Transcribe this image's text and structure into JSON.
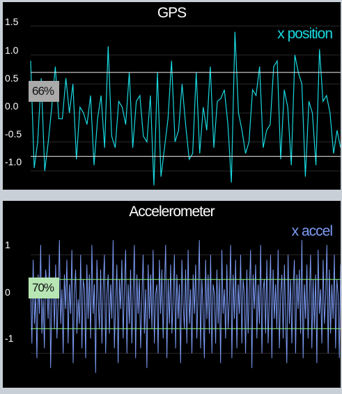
{
  "gps": {
    "title": "GPS",
    "legend": "x position",
    "badge": "66%",
    "ticks": [
      "1.5",
      "1.0",
      "0.5",
      "0.0",
      "-0.5",
      "-1.0"
    ],
    "colors": {
      "line": "#19d9e0",
      "threshold": "#d9d9d9",
      "badge_bg": "#aaaaaa"
    }
  },
  "accel": {
    "title": "Accelerometer",
    "legend": "x accel",
    "badge": "70%",
    "ticks": [
      "1",
      "0",
      "-1"
    ],
    "colors": {
      "line": "#7d9cf6",
      "threshold": "#7fe07a",
      "badge_bg": "#b7e6b4"
    }
  },
  "chart_data": [
    {
      "type": "line",
      "title": "GPS",
      "series": [
        {
          "name": "x position",
          "values": [
            0.9,
            -0.95,
            -0.5,
            0.6,
            -1.0,
            -0.5,
            0.1,
            0.8,
            -0.1,
            -0.1,
            0.6,
            0.0,
            0.5,
            -0.8,
            0.1,
            0.0,
            -0.2,
            0.3,
            -0.9,
            -0.1,
            0.3,
            -0.6,
            1.15,
            -0.4,
            -0.6,
            0.2,
            0.1,
            -0.2,
            0.7,
            -0.6,
            0.2,
            0.3,
            -0.4,
            -0.5,
            0.3,
            -1.25,
            0.7,
            -1.1,
            -0.6,
            -0.1,
            0.9,
            -0.5,
            -0.3,
            0.5,
            -0.2,
            -0.8,
            -0.7,
            0.7,
            -0.7,
            0.1,
            -0.3,
            0.8,
            -0.6,
            0.2,
            0.25,
            0.4,
            -0.2,
            -1.2,
            1.4,
            0.0,
            -0.3,
            -0.7,
            -0.5,
            0.4,
            0.3,
            0.8,
            -0.6,
            -0.3,
            -0.2,
            0.8,
            0.9,
            -0.8,
            0.4,
            0.1,
            -0.9,
            1.0,
            0.7,
            0.5,
            -1.1,
            0.2,
            0.0,
            -0.9,
            1.1,
            0.2,
            0.3,
            0.0,
            -0.7,
            -0.3,
            -0.6
          ]
        }
      ],
      "ylim": [
        -1.3,
        1.6
      ],
      "thresholds": [
        0.7,
        -0.75
      ]
    },
    {
      "type": "line",
      "title": "Accelerometer",
      "series": [
        {
          "name": "x accel",
          "values": [
            0.3,
            -0.8,
            0.9,
            -0.4,
            0.2,
            -1.1,
            0.6,
            -0.2,
            1.2,
            -0.6,
            0.1,
            -0.9,
            0.7,
            0.4,
            -0.3,
            1.0,
            -1.3,
            0.2,
            0.5,
            -0.5,
            0.8,
            -0.7,
            0.0,
            1.3,
            -0.4,
            0.3,
            -1.0,
            0.6,
            -0.1,
            0.9,
            -0.8,
            0.4,
            -0.2,
            1.1,
            -1.2,
            0.2,
            0.7,
            -0.6,
            0.1,
            -0.4,
            1.0,
            -0.9,
            0.5,
            0.3,
            -1.1,
            0.8,
            -0.3,
            0.6,
            -0.7,
            1.2,
            -0.2,
            0.4,
            -1.4,
            0.9,
            0.1,
            -0.5,
            0.7,
            -0.8,
            0.3,
            1.0,
            -1.0,
            0.2,
            0.6,
            -0.6,
            0.4,
            -0.3,
            1.3,
            -0.9,
            0.0,
            0.8,
            -1.2,
            0.5,
            -0.1,
            0.9,
            -0.7,
            0.3,
            1.1,
            -1.0,
            0.4,
            -0.4,
            0.7,
            -0.8,
            0.2,
            1.2,
            -1.1,
            0.6,
            -0.2,
            0.5,
            -0.9,
            0.1,
            1.0,
            -0.6,
            0.3,
            -1.3,
            0.8,
            -0.3,
            0.6,
            -0.5,
            1.1,
            -0.8,
            0.2,
            0.4,
            -1.0,
            0.9,
            -0.2,
            0.7,
            -0.7,
            0.3,
            1.2,
            -1.1,
            0.5,
            -0.4,
            0.8,
            -0.6,
            0.1,
            1.0,
            -0.9,
            0.6,
            -0.3,
            0.4,
            -1.2,
            0.9,
            0.0,
            -0.5,
            0.7,
            -0.8,
            1.1,
            -0.4,
            0.3,
            -1.0,
            0.6,
            -0.2,
            0.8,
            -0.7,
            0.2,
            1.3,
            -0.9,
            0.5,
            -0.1,
            -1.1,
            0.9,
            -0.3,
            0.6,
            -0.6,
            1.0,
            -1.0,
            0.4,
            0.2,
            -0.8,
            0.7,
            -0.4,
            0.5,
            -1.2,
            1.1,
            -0.2,
            0.3,
            -0.7,
            0.8,
            -0.5,
            0.1,
            1.2,
            -1.1,
            0.6,
            -0.3,
            0.9,
            -0.9,
            0.4,
            -0.2,
            1.0,
            -0.8,
            0.5,
            0.2,
            -1.0,
            0.7,
            -0.6,
            0.3,
            1.1,
            -1.3,
            0.6,
            -0.1,
            0.8,
            -0.7,
            0.4,
            -0.4,
            1.2,
            -1.0,
            0.3,
            0.5,
            -0.6,
            0.9,
            -0.8,
            0.1,
            1.0,
            -1.1,
            0.7,
            -0.3,
            0.4,
            -0.5,
            1.1,
            -0.9,
            0.2,
            0.6,
            -0.7,
            0.8,
            -0.2,
            -1.2,
            1.0,
            -0.4,
            0.5,
            -0.8,
            0.3,
            0.9,
            -1.0,
            0.6,
            -0.1,
            0.7,
            -0.6,
            1.3,
            -1.1,
            0.4,
            -0.3,
            0.8,
            -0.7,
            0.2,
            1.0,
            -0.9,
            0.5,
            -0.5,
            0.6,
            -1.2,
            1.1,
            -0.2,
            0.3,
            -0.8,
            0.9,
            -0.4,
            0.1,
            1.2,
            -1.0,
            0.7,
            -0.6,
            0.4,
            -0.3,
            1.0,
            -0.9,
            0.5,
            0.2,
            -1.1,
            0.8
          ]
        }
      ],
      "ylim": [
        -1.7,
        1.7
      ],
      "thresholds": [
        0.5,
        -0.5
      ]
    }
  ]
}
